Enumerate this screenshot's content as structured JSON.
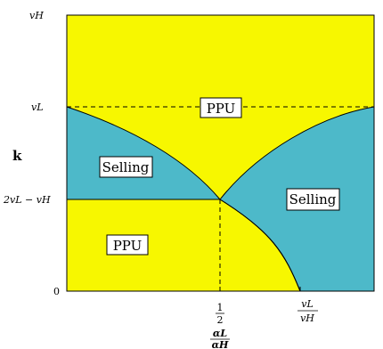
{
  "colors": {
    "yellow_region": "#f7f700",
    "blue_region": "#4db9c9",
    "lines": "#000000"
  },
  "axes": {
    "y_label": "k",
    "x_label": {
      "numerator": "αL",
      "denominator": "αH"
    },
    "y_ticks": [
      "vH",
      "vL",
      "2vL − vH",
      "0"
    ],
    "x_ticks": {
      "half": {
        "numerator": "1",
        "denominator": "2"
      },
      "ratio": {
        "numerator": "vL",
        "denominator": "vH"
      }
    }
  },
  "regions": [
    {
      "id": "ppu_top",
      "label": "PPU",
      "color": "yellow"
    },
    {
      "id": "selling_left",
      "label": "Selling",
      "color": "blue"
    },
    {
      "id": "selling_right",
      "label": "Selling",
      "color": "blue"
    },
    {
      "id": "ppu_bottom",
      "label": "PPU",
      "color": "yellow"
    }
  ]
}
